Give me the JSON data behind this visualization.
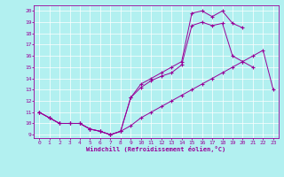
{
  "xlabel": "Windchill (Refroidissement éolien,°C)",
  "xlim": [
    -0.5,
    23.5
  ],
  "ylim": [
    8.7,
    20.5
  ],
  "yticks": [
    9,
    10,
    11,
    12,
    13,
    14,
    15,
    16,
    17,
    18,
    19,
    20
  ],
  "xticks": [
    0,
    1,
    2,
    3,
    4,
    5,
    6,
    7,
    8,
    9,
    10,
    11,
    12,
    13,
    14,
    15,
    16,
    17,
    18,
    19,
    20,
    21,
    22,
    23
  ],
  "bg_color": "#b2f0f0",
  "line_color": "#990099",
  "grid_color": "#ffffff",
  "line1_x": [
    0,
    1,
    2,
    3,
    4,
    5,
    6,
    7,
    8,
    9,
    10,
    11,
    12,
    13,
    14,
    15,
    16,
    17,
    18,
    19,
    20,
    21,
    22,
    23
  ],
  "line1_y": [
    11,
    10.5,
    10,
    10,
    10,
    9.5,
    9.3,
    9.0,
    9.3,
    9.8,
    10.5,
    11.0,
    11.5,
    12.0,
    12.5,
    13.0,
    13.5,
    14.0,
    14.5,
    15.0,
    15.5,
    16.0,
    16.5,
    13.0
  ],
  "line2_x": [
    0,
    1,
    2,
    3,
    4,
    5,
    6,
    7,
    8,
    9,
    10,
    11,
    12,
    13,
    14,
    15,
    16,
    17,
    18,
    19,
    20,
    21
  ],
  "line2_y": [
    11,
    10.5,
    10,
    10,
    10,
    9.5,
    9.3,
    9.0,
    9.3,
    12.3,
    13.2,
    13.8,
    14.2,
    14.5,
    15.2,
    18.7,
    19.0,
    18.7,
    18.9,
    16.0,
    15.5,
    15.0
  ],
  "line3_x": [
    0,
    1,
    2,
    3,
    4,
    5,
    6,
    7,
    8,
    9,
    10,
    11,
    12,
    13,
    14,
    15,
    16,
    17,
    18,
    19,
    20
  ],
  "line3_y": [
    11,
    10.5,
    10,
    10,
    10,
    9.5,
    9.3,
    9.0,
    9.3,
    12.3,
    13.5,
    14.0,
    14.5,
    15.0,
    15.5,
    19.8,
    20.0,
    19.5,
    20.0,
    18.9,
    18.5
  ]
}
